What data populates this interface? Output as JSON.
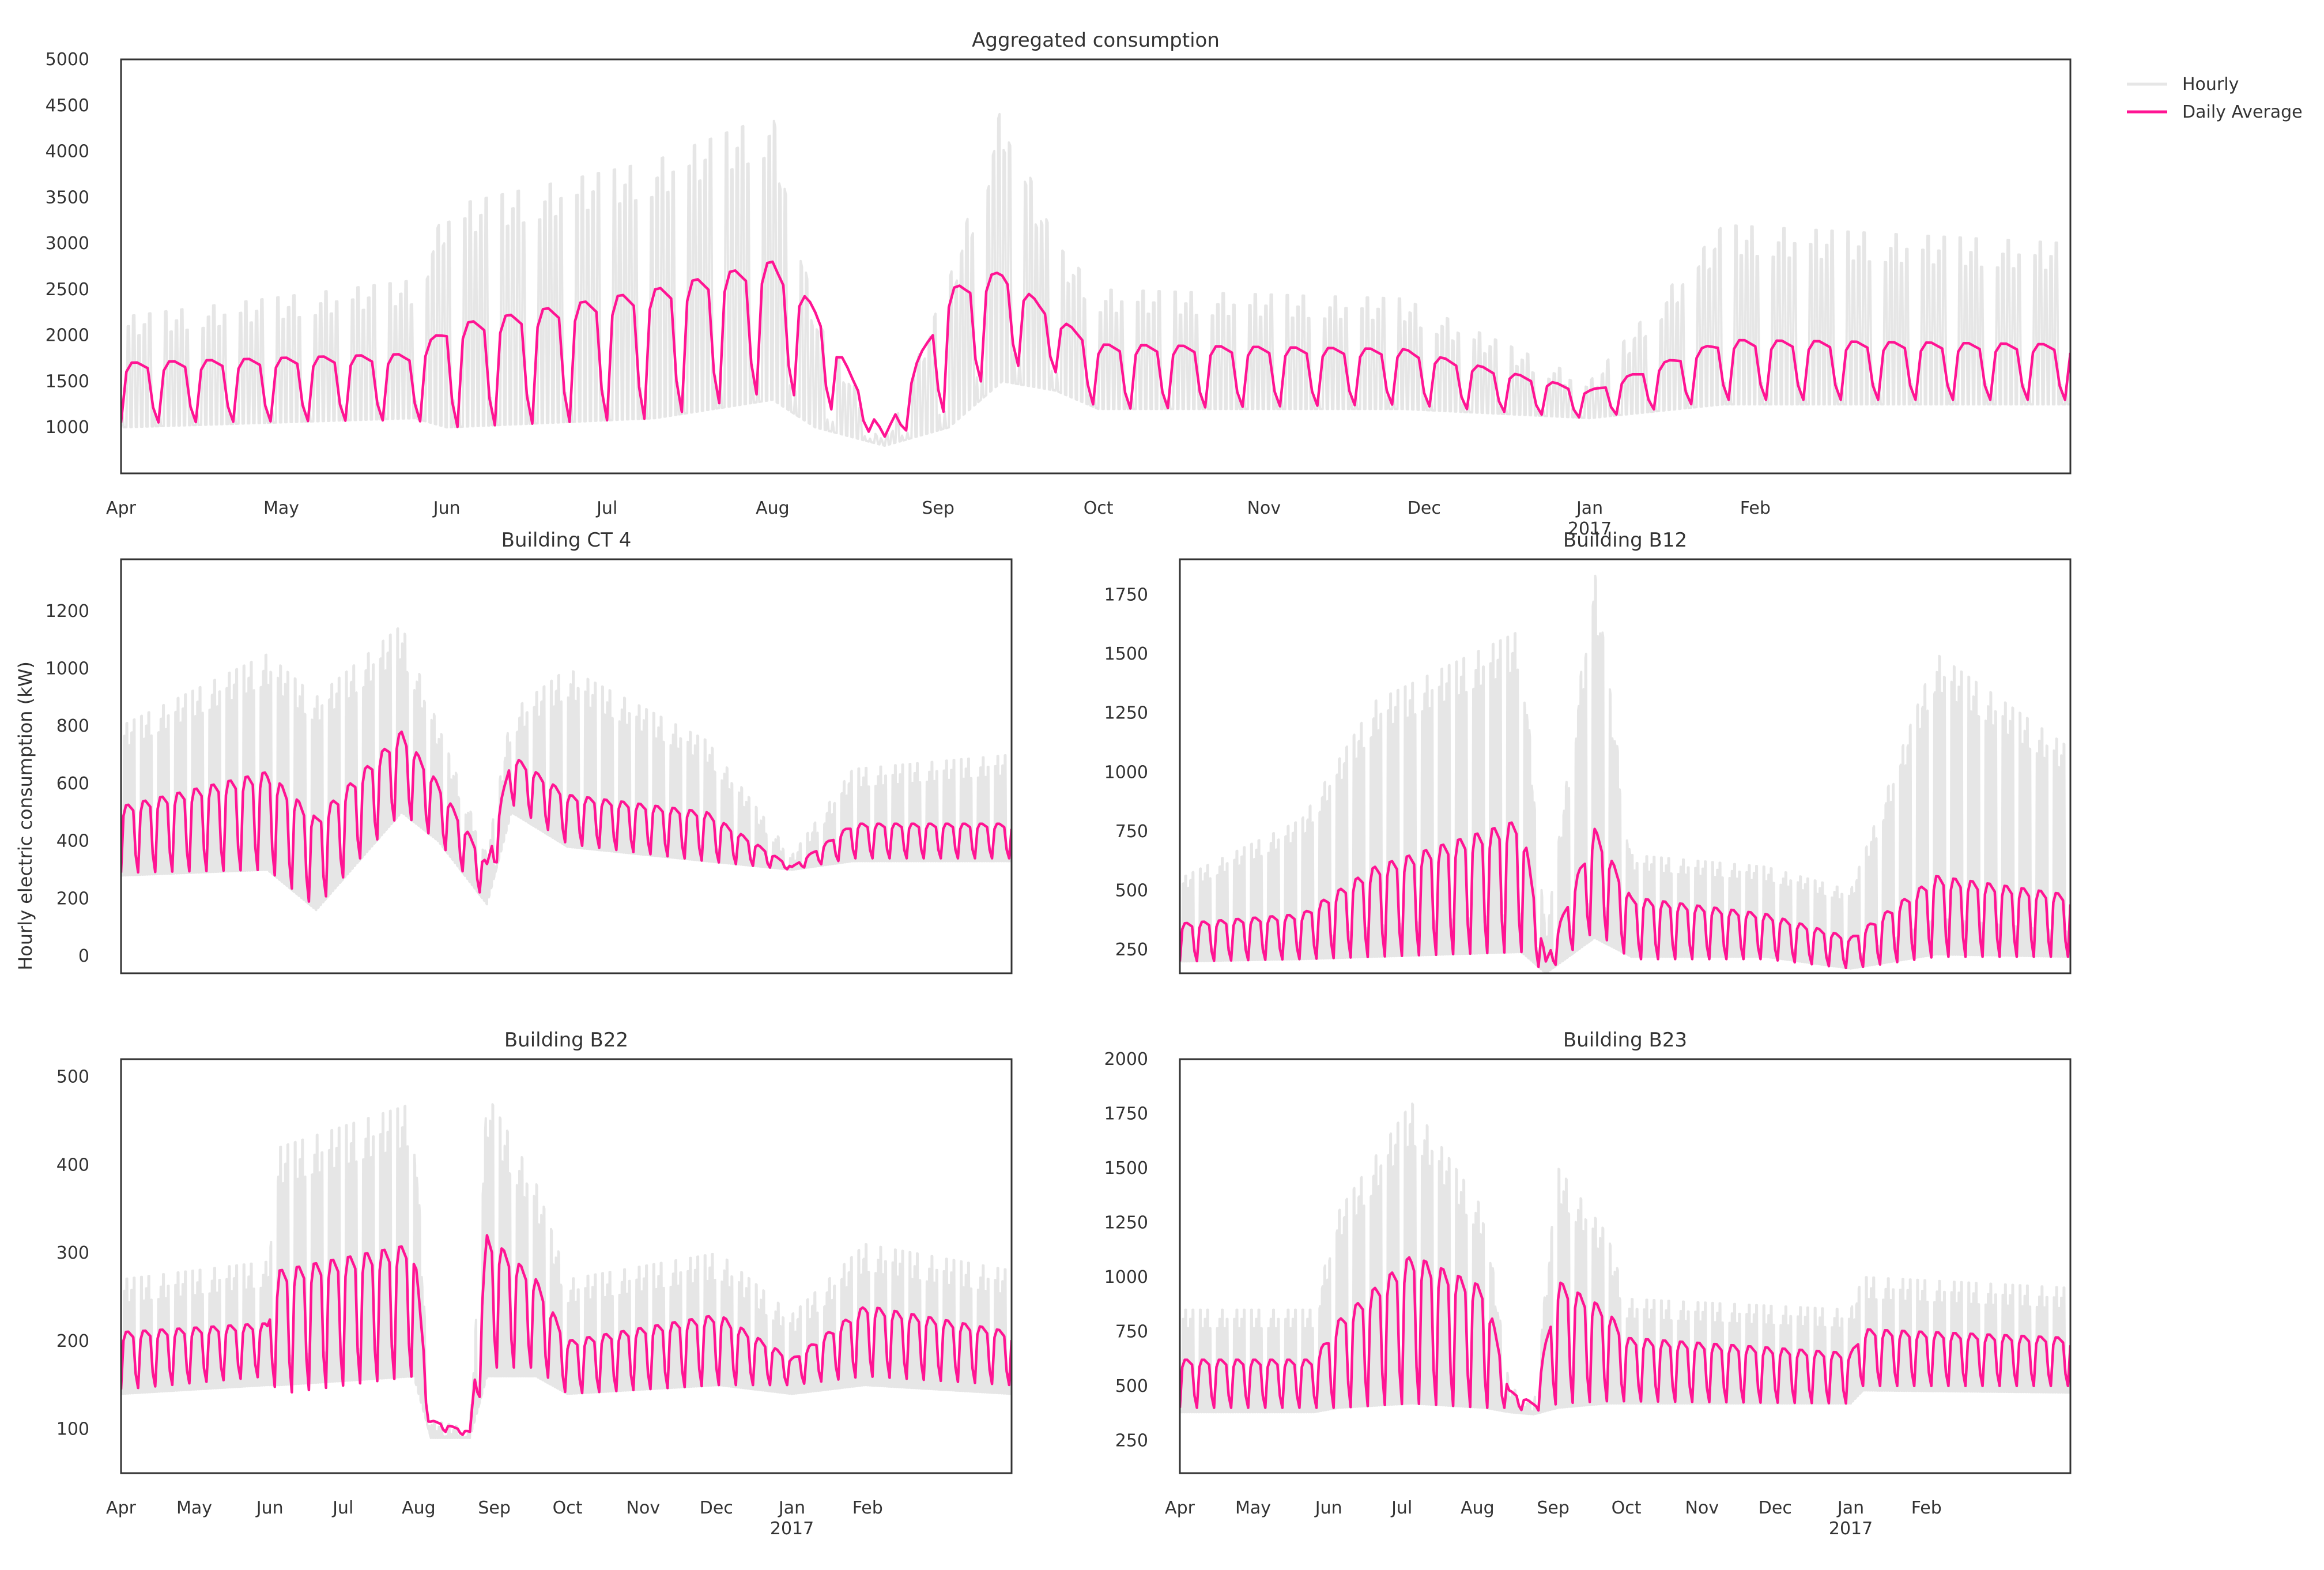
{
  "figure": {
    "ylabel": "Hourly electric consumption (kW)",
    "legend": {
      "position": "upper-right-outside",
      "hourly_label": "Hourly",
      "daily_label": "Daily Average"
    },
    "colors": {
      "hourly": "#e6e6e6",
      "daily": "#ff1493",
      "axis": "#333333"
    }
  },
  "chart_data": [
    {
      "id": "aggregated",
      "type": "line",
      "title": "Aggregated consumption",
      "ylim": [
        500,
        5000
      ],
      "yticks": [
        1000,
        1500,
        2000,
        2500,
        3000,
        3500,
        4000,
        4500,
        5000
      ],
      "xlim": [
        0,
        365
      ],
      "xticks": [
        {
          "label": "Apr",
          "day": 0
        },
        {
          "label": "May",
          "day": 30
        },
        {
          "label": "Jun",
          "day": 61
        },
        {
          "label": "Jul",
          "day": 91
        },
        {
          "label": "Aug",
          "day": 122
        },
        {
          "label": "Sep",
          "day": 153
        },
        {
          "label": "Oct",
          "day": 183
        },
        {
          "label": "Nov",
          "day": 214
        },
        {
          "label": "Dec",
          "day": 244
        },
        {
          "label": "Jan",
          "day": 275,
          "sublabel": "2017"
        },
        {
          "label": "Feb",
          "day": 306
        }
      ],
      "series": [
        {
          "name": "Hourly",
          "style": "weekly",
          "anchors": [
            [
              0,
              1000,
              2200
            ],
            [
              55,
              1100,
              2600
            ],
            [
              61,
              1000,
              3400
            ],
            [
              100,
              1100,
              3900
            ],
            [
              122,
              1300,
              4400
            ],
            [
              130,
              1000,
              2200
            ],
            [
              143,
              800,
              850
            ],
            [
              155,
              1000,
              2600
            ],
            [
              165,
              1500,
              4500
            ],
            [
              175,
              1400,
              3000
            ],
            [
              183,
              1200,
              2500
            ],
            [
              240,
              1200,
              2400
            ],
            [
              275,
              1100,
              1500
            ],
            [
              300,
              1250,
              3200
            ],
            [
              365,
              1250,
              3000
            ]
          ]
        },
        {
          "name": "Daily Average",
          "style": "weekly",
          "anchors": [
            [
              0,
              1050,
              1700
            ],
            [
              55,
              1080,
              1800
            ],
            [
              61,
              1000,
              2100
            ],
            [
              100,
              1100,
              2500
            ],
            [
              122,
              1400,
              2800
            ],
            [
              130,
              1300,
              2300
            ],
            [
              143,
              850,
              900
            ],
            [
              155,
              1200,
              2500
            ],
            [
              165,
              1700,
              2700
            ],
            [
              175,
              1600,
              2200
            ],
            [
              183,
              1200,
              1900
            ],
            [
              240,
              1250,
              1850
            ],
            [
              275,
              1100,
              1400
            ],
            [
              300,
              1300,
              1950
            ],
            [
              365,
              1300,
              1900
            ]
          ]
        }
      ]
    },
    {
      "id": "ct4",
      "type": "line",
      "title": "Building CT 4",
      "ylim": [
        -60,
        1380
      ],
      "yticks": [
        0,
        200,
        400,
        600,
        800,
        1000,
        1200
      ],
      "xlim": [
        0,
        365
      ],
      "series": [
        {
          "name": "Hourly",
          "style": "weekly",
          "anchors": [
            [
              0,
              280,
              800
            ],
            [
              60,
              300,
              1050
            ],
            [
              80,
              160,
              900
            ],
            [
              115,
              500,
              1150
            ],
            [
              130,
              400,
              800
            ],
            [
              150,
              180,
              350
            ],
            [
              160,
              500,
              850
            ],
            [
              183,
              380,
              1000
            ],
            [
              240,
              330,
              750
            ],
            [
              275,
              300,
              350
            ],
            [
              300,
              330,
              650
            ],
            [
              365,
              330,
              700
            ]
          ]
        },
        {
          "name": "Daily Average",
          "style": "weekly",
          "anchors": [
            [
              0,
              290,
              520
            ],
            [
              60,
              300,
              640
            ],
            [
              80,
              170,
              480
            ],
            [
              115,
              500,
              780
            ],
            [
              130,
              400,
              600
            ],
            [
              150,
              190,
              320
            ],
            [
              160,
              530,
              700
            ],
            [
              183,
              390,
              560
            ],
            [
              240,
              330,
              500
            ],
            [
              275,
              300,
              310
            ],
            [
              300,
              340,
              460
            ],
            [
              365,
              340,
              460
            ]
          ]
        }
      ]
    },
    {
      "id": "b12",
      "type": "line",
      "title": "Building B12",
      "ylim": [
        150,
        1900
      ],
      "yticks": [
        250,
        500,
        750,
        1000,
        1250,
        1500,
        1750
      ],
      "xlim": [
        0,
        365
      ],
      "series": [
        {
          "name": "Hourly",
          "style": "weekly",
          "anchors": [
            [
              0,
              200,
              550
            ],
            [
              50,
              210,
              800
            ],
            [
              80,
              220,
              1300
            ],
            [
              140,
              240,
              1600
            ],
            [
              150,
              150,
              300
            ],
            [
              170,
              300,
              1850
            ],
            [
              185,
              220,
              650
            ],
            [
              240,
              220,
              600
            ],
            [
              275,
              170,
              500
            ],
            [
              310,
              230,
              1500
            ],
            [
              365,
              220,
              1100
            ]
          ]
        },
        {
          "name": "Daily Average",
          "style": "weekly",
          "anchors": [
            [
              0,
              200,
              360
            ],
            [
              50,
              210,
              400
            ],
            [
              80,
              220,
              600
            ],
            [
              140,
              240,
              800
            ],
            [
              150,
              150,
              200
            ],
            [
              170,
              330,
              760
            ],
            [
              185,
              210,
              470
            ],
            [
              240,
              210,
              400
            ],
            [
              275,
              170,
              300
            ],
            [
              310,
              220,
              560
            ],
            [
              365,
              220,
              480
            ]
          ]
        }
      ]
    },
    {
      "id": "b22",
      "type": "line",
      "title": "Building B22",
      "ylim": [
        50,
        520
      ],
      "yticks": [
        100,
        200,
        300,
        400,
        500
      ],
      "xlim": [
        0,
        365
      ],
      "xticks": [
        {
          "label": "Apr",
          "day": 0
        },
        {
          "label": "May",
          "day": 30
        },
        {
          "label": "Jun",
          "day": 61
        },
        {
          "label": "Jul",
          "day": 91
        },
        {
          "label": "Aug",
          "day": 122
        },
        {
          "label": "Sep",
          "day": 153
        },
        {
          "label": "Oct",
          "day": 183
        },
        {
          "label": "Nov",
          "day": 214
        },
        {
          "label": "Dec",
          "day": 244
        },
        {
          "label": "Jan",
          "day": 275,
          "sublabel": "2017"
        },
        {
          "label": "Feb",
          "day": 306
        }
      ],
      "series": [
        {
          "name": "Hourly",
          "style": "weekly",
          "anchors": [
            [
              0,
              140,
              270
            ],
            [
              60,
              150,
              290
            ],
            [
              65,
              150,
              420
            ],
            [
              120,
              160,
              470
            ],
            [
              127,
              90,
              110
            ],
            [
              143,
              90,
              100
            ],
            [
              150,
              160,
              480
            ],
            [
              170,
              160,
              380
            ],
            [
              183,
              140,
              270
            ],
            [
              245,
              150,
              300
            ],
            [
              275,
              140,
              230
            ],
            [
              305,
              150,
              310
            ],
            [
              365,
              140,
              280
            ]
          ]
        },
        {
          "name": "Daily Average",
          "style": "weekly",
          "anchors": [
            [
              0,
              145,
              210
            ],
            [
              60,
              160,
              220
            ],
            [
              65,
              140,
              280
            ],
            [
              120,
              160,
              310
            ],
            [
              127,
              100,
              110
            ],
            [
              143,
              92,
              97
            ],
            [
              150,
              170,
              320
            ],
            [
              170,
              170,
              270
            ],
            [
              183,
              140,
              200
            ],
            [
              245,
              150,
              230
            ],
            [
              275,
              150,
              180
            ],
            [
              305,
              160,
              240
            ],
            [
              365,
              150,
              210
            ]
          ]
        }
      ]
    },
    {
      "id": "b23",
      "type": "line",
      "title": "Building B23",
      "ylim": [
        100,
        2000
      ],
      "yticks": [
        250,
        500,
        750,
        1000,
        1250,
        1500,
        1750,
        2000
      ],
      "xlim": [
        0,
        365
      ],
      "xticks": [
        {
          "label": "Apr",
          "day": 0
        },
        {
          "label": "May",
          "day": 30
        },
        {
          "label": "Jun",
          "day": 61
        },
        {
          "label": "Jul",
          "day": 91
        },
        {
          "label": "Aug",
          "day": 122
        },
        {
          "label": "Sep",
          "day": 153
        },
        {
          "label": "Oct",
          "day": 183
        },
        {
          "label": "Nov",
          "day": 214
        },
        {
          "label": "Dec",
          "day": 244
        },
        {
          "label": "Jan",
          "day": 275,
          "sublabel": "2017"
        },
        {
          "label": "Feb",
          "day": 306
        }
      ],
      "series": [
        {
          "name": "Hourly",
          "style": "weekly",
          "anchors": [
            [
              0,
              380,
              850
            ],
            [
              55,
              380,
              850
            ],
            [
              65,
              400,
              1300
            ],
            [
              95,
              420,
              1800
            ],
            [
              125,
              400,
              1300
            ],
            [
              135,
              380,
              500
            ],
            [
              145,
              370,
              420
            ],
            [
              155,
              400,
              1500
            ],
            [
              175,
              420,
              1200
            ],
            [
              183,
              420,
              900
            ],
            [
              275,
              420,
              850
            ],
            [
              280,
              480,
              1000
            ],
            [
              365,
              470,
              950
            ]
          ]
        },
        {
          "name": "Daily Average",
          "style": "weekly",
          "anchors": [
            [
              0,
              400,
              620
            ],
            [
              55,
              400,
              620
            ],
            [
              65,
              400,
              800
            ],
            [
              95,
              420,
              1100
            ],
            [
              125,
              400,
              950
            ],
            [
              135,
              400,
              480
            ],
            [
              145,
              380,
              420
            ],
            [
              155,
              420,
              980
            ],
            [
              175,
              430,
              850
            ],
            [
              183,
              430,
              720
            ],
            [
              275,
              420,
              650
            ],
            [
              280,
              500,
              760
            ],
            [
              365,
              500,
              720
            ]
          ]
        }
      ]
    }
  ]
}
